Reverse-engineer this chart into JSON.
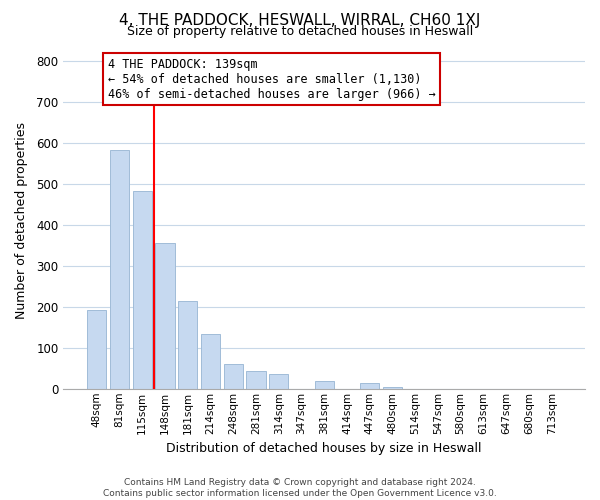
{
  "title": "4, THE PADDOCK, HESWALL, WIRRAL, CH60 1XJ",
  "subtitle": "Size of property relative to detached houses in Heswall",
  "xlabel": "Distribution of detached houses by size in Heswall",
  "ylabel": "Number of detached properties",
  "bar_labels": [
    "48sqm",
    "81sqm",
    "115sqm",
    "148sqm",
    "181sqm",
    "214sqm",
    "248sqm",
    "281sqm",
    "314sqm",
    "347sqm",
    "381sqm",
    "414sqm",
    "447sqm",
    "480sqm",
    "514sqm",
    "547sqm",
    "580sqm",
    "613sqm",
    "647sqm",
    "680sqm",
    "713sqm"
  ],
  "bar_values": [
    193,
    583,
    483,
    355,
    215,
    133,
    60,
    43,
    37,
    0,
    18,
    0,
    13,
    5,
    0,
    0,
    0,
    0,
    0,
    0,
    0
  ],
  "bar_color": "#c6d9f0",
  "bar_edge_color": "#a0bcd8",
  "property_line_color": "red",
  "annotation_line1": "4 THE PADDOCK: 139sqm",
  "annotation_line2": "← 54% of detached houses are smaller (1,130)",
  "annotation_line3": "46% of semi-detached houses are larger (966) →",
  "footer_line1": "Contains HM Land Registry data © Crown copyright and database right 2024.",
  "footer_line2": "Contains public sector information licensed under the Open Government Licence v3.0.",
  "ylim": [
    0,
    820
  ],
  "yticks": [
    0,
    100,
    200,
    300,
    400,
    500,
    600,
    700,
    800
  ],
  "background_color": "#ffffff",
  "grid_color": "#c8d8e8"
}
